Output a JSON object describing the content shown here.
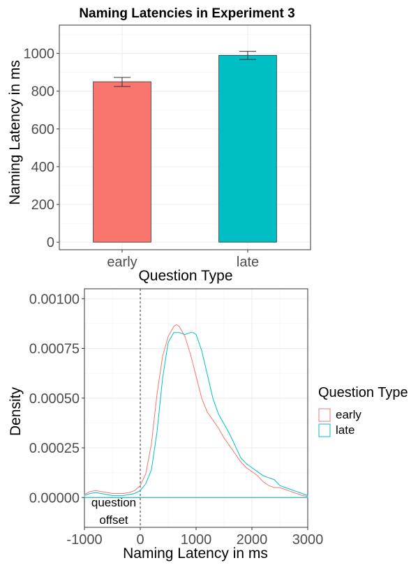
{
  "chart_data": [
    {
      "type": "bar",
      "title": "Naming Latencies in Experiment 3",
      "xlabel": "Question Type",
      "ylabel": "Naming Latency in ms",
      "categories": [
        "early",
        "late"
      ],
      "values": [
        850,
        990
      ],
      "error_bars": [
        {
          "low": 825,
          "high": 873
        },
        {
          "low": 968,
          "high": 1011
        }
      ],
      "colors": [
        "#F8766D",
        "#00BFC4"
      ],
      "ylim": [
        -40,
        1150
      ],
      "yticks": [
        0,
        200,
        400,
        600,
        800,
        1000
      ],
      "ytick_labels": [
        "0",
        "200",
        "400",
        "600",
        "800",
        "1000"
      ],
      "grid": true
    },
    {
      "type": "line",
      "xlabel": "Naming Latency in ms",
      "ylabel": "Density",
      "xlim": [
        -1000,
        3000
      ],
      "ylim": [
        -0.00015,
        0.00105
      ],
      "xticks": [
        -1000,
        0,
        1000,
        2000,
        3000
      ],
      "xtick_labels": [
        "-1000",
        "0",
        "1000",
        "2000",
        "3000"
      ],
      "yticks": [
        0,
        0.00025,
        0.0005,
        0.00075,
        0.001
      ],
      "ytick_labels": [
        "0.00000",
        "0.00025",
        "0.00050",
        "0.00075",
        "0.00100"
      ],
      "grid": true,
      "vline": {
        "x": 0,
        "style": "dashed",
        "label_lines": [
          "question",
          "offset"
        ]
      },
      "legend": {
        "title": "Question Type",
        "position": "right"
      },
      "series": [
        {
          "name": "early",
          "color": "#F8766D",
          "x": [
            -1000,
            -900,
            -800,
            -700,
            -600,
            -500,
            -400,
            -300,
            -200,
            -100,
            0,
            100,
            200,
            300,
            400,
            500,
            600,
            650,
            700,
            800,
            900,
            1000,
            1100,
            1200,
            1300,
            1400,
            1500,
            1600,
            1700,
            1800,
            1900,
            2000,
            2100,
            2200,
            2300,
            2400,
            2500,
            2600,
            2700,
            2800,
            2900,
            3000
          ],
          "y": [
            1.5e-05,
            3e-05,
            3.5e-05,
            3e-05,
            2.5e-05,
            2e-05,
            2e-05,
            2e-05,
            2.5e-05,
            3.5e-05,
            6e-05,
            0.00012,
            0.00027,
            0.00052,
            0.00071,
            0.00081,
            0.00086,
            0.00087,
            0.00086,
            0.00081,
            0.00072,
            0.00061,
            0.0005,
            0.00043,
            0.00039,
            0.00035,
            0.0003,
            0.00026,
            0.00022,
            0.00018,
            0.00015,
            0.00013,
            0.00011,
            8e-05,
            6e-05,
            5e-05,
            5e-05,
            4e-05,
            3e-05,
            2e-05,
            1e-05,
            5e-06
          ]
        },
        {
          "name": "late",
          "color": "#00BFC4",
          "x": [
            -1000,
            -900,
            -800,
            -700,
            -600,
            -500,
            -400,
            -300,
            -200,
            -100,
            0,
            100,
            200,
            300,
            400,
            500,
            600,
            700,
            800,
            900,
            950,
            1000,
            1100,
            1200,
            1300,
            1400,
            1500,
            1600,
            1700,
            1800,
            1900,
            2000,
            2100,
            2200,
            2300,
            2400,
            2500,
            2600,
            2700,
            2800,
            2900,
            3000
          ],
          "y": [
            1e-05,
            2e-05,
            2.5e-05,
            2e-05,
            1.5e-05,
            1e-05,
            1e-05,
            1e-05,
            1.5e-05,
            2e-05,
            3.5e-05,
            7e-05,
            0.00014,
            0.00033,
            0.0006,
            0.00078,
            0.00083,
            0.00083,
            0.00082,
            0.00083,
            0.00083,
            0.00082,
            0.00074,
            0.00062,
            0.0005,
            0.00042,
            0.00037,
            0.00032,
            0.00026,
            0.0002,
            0.00017,
            0.00015,
            0.00013,
            0.00011,
            0.0001,
            9e-05,
            6e-05,
            5e-05,
            4e-05,
            3e-05,
            2e-05,
            1e-05
          ]
        }
      ]
    }
  ]
}
